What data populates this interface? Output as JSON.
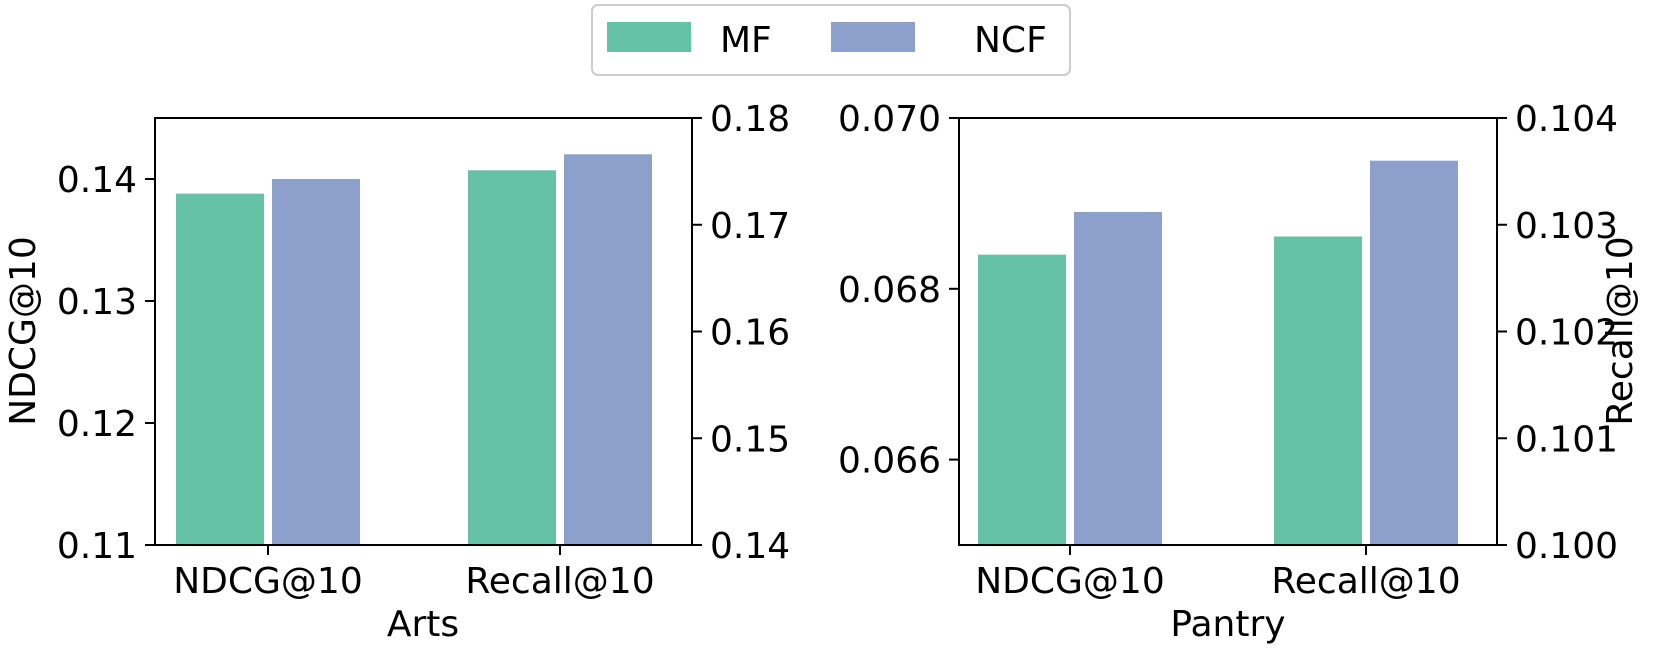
{
  "legend": {
    "placement": "top-center",
    "entries": [
      {
        "label": "MF",
        "color": "#66c2a5"
      },
      {
        "label": "NCF",
        "color": "#8da0cb"
      }
    ]
  },
  "chart_data": [
    {
      "type": "bar",
      "xlabel": "Arts",
      "ylabel_left": "NDCG@10",
      "ylabel_right": "",
      "categories": [
        "NDCG@10",
        "Recall@10"
      ],
      "left_axis": {
        "ylim": [
          0.11,
          0.145
        ],
        "ticks": [
          "0.11",
          "0.12",
          "0.13",
          "0.14"
        ]
      },
      "right_axis": {
        "ylim": [
          0.14,
          0.18
        ],
        "ticks": [
          "0.14",
          "0.15",
          "0.16",
          "0.17",
          "0.18"
        ]
      },
      "series": [
        {
          "name": "MF",
          "color": "#66c2a5",
          "values": [
            0.1388,
            0.1751
          ],
          "axis": [
            "left",
            "right"
          ]
        },
        {
          "name": "NCF",
          "color": "#8da0cb",
          "values": [
            0.14,
            0.1766
          ],
          "axis": [
            "left",
            "right"
          ]
        }
      ],
      "grid": false
    },
    {
      "type": "bar",
      "xlabel": "Pantry",
      "ylabel_left": "",
      "ylabel_right": "Recall@10",
      "categories": [
        "NDCG@10",
        "Recall@10"
      ],
      "left_axis": {
        "ylim": [
          0.065,
          0.07
        ],
        "ticks": [
          "0.066",
          "0.068",
          "0.070"
        ]
      },
      "right_axis": {
        "ylim": [
          0.1,
          0.104
        ],
        "ticks": [
          "0.100",
          "0.101",
          "0.102",
          "0.103",
          "0.104"
        ]
      },
      "series": [
        {
          "name": "MF",
          "color": "#66c2a5",
          "values": [
            0.0684,
            0.10289
          ],
          "axis": [
            "left",
            "right"
          ]
        },
        {
          "name": "NCF",
          "color": "#8da0cb",
          "values": [
            0.0689,
            0.1036
          ],
          "axis": [
            "left",
            "right"
          ]
        }
      ],
      "grid": false
    }
  ]
}
